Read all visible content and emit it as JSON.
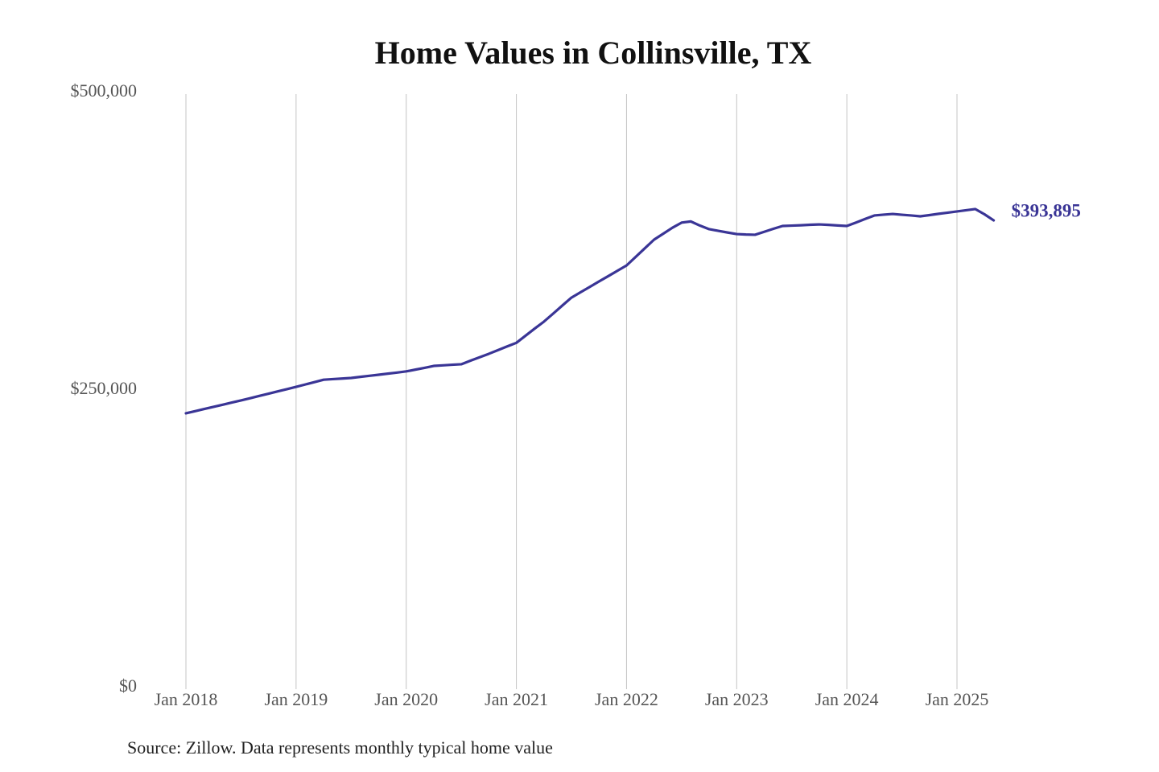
{
  "chart_data": {
    "type": "line",
    "title": "Home Values in Collinsville, TX",
    "source": "Source: Zillow. Data represents monthly typical home value",
    "x": [
      "2018-01",
      "2018-02",
      "2018-03",
      "2018-04",
      "2018-05",
      "2018-06",
      "2018-07",
      "2018-08",
      "2018-09",
      "2018-10",
      "2018-11",
      "2018-12",
      "2019-01",
      "2019-02",
      "2019-03",
      "2019-04",
      "2019-05",
      "2019-06",
      "2019-07",
      "2019-08",
      "2019-09",
      "2019-10",
      "2019-11",
      "2019-12",
      "2020-01",
      "2020-02",
      "2020-03",
      "2020-04",
      "2020-05",
      "2020-06",
      "2020-07",
      "2020-08",
      "2020-09",
      "2020-10",
      "2020-11",
      "2020-12",
      "2021-01",
      "2021-02",
      "2021-03",
      "2021-04",
      "2021-05",
      "2021-06",
      "2021-07",
      "2021-08",
      "2021-09",
      "2021-10",
      "2021-11",
      "2021-12",
      "2022-01",
      "2022-02",
      "2022-03",
      "2022-04",
      "2022-05",
      "2022-06",
      "2022-07",
      "2022-08",
      "2022-09",
      "2022-10",
      "2022-11",
      "2022-12",
      "2023-01",
      "2023-02",
      "2023-03",
      "2023-04",
      "2023-05",
      "2023-06",
      "2023-07",
      "2023-08",
      "2023-09",
      "2023-10",
      "2023-11",
      "2023-12",
      "2024-01",
      "2024-02",
      "2024-03",
      "2024-04",
      "2024-05",
      "2024-06",
      "2024-07",
      "2024-08",
      "2024-09",
      "2024-10",
      "2024-11",
      "2024-12",
      "2025-01",
      "2025-02",
      "2025-03",
      "2025-04",
      "2025-05"
    ],
    "series": [
      {
        "name": "Typical home value",
        "color": "#3a3596",
        "values": [
          231800,
          233600,
          235400,
          237200,
          239000,
          240800,
          242600,
          244500,
          246400,
          248300,
          250200,
          252100,
          254000,
          256000,
          258000,
          260000,
          260500,
          261000,
          261500,
          262400,
          263300,
          264200,
          265100,
          266000,
          267000,
          268500,
          270000,
          271600,
          272100,
          272600,
          273000,
          276000,
          278900,
          281800,
          284900,
          288000,
          291000,
          297000,
          303000,
          308800,
          315500,
          322300,
          329000,
          333500,
          338000,
          342600,
          347000,
          351500,
          356000,
          363200,
          370500,
          377700,
          382700,
          387700,
          392000,
          393000,
          389500,
          386500,
          385100,
          383700,
          382400,
          382000,
          381800,
          384300,
          386800,
          389200,
          389500,
          389800,
          390200,
          390500,
          390100,
          389600,
          389200,
          392100,
          395100,
          398000,
          398700,
          399300,
          398600,
          398000,
          397300,
          398300,
          399400,
          400400,
          401400,
          402400,
          403400,
          399000,
          393895
        ],
        "value_labels": [
          null,
          null,
          null,
          null,
          null,
          null,
          null,
          null,
          null,
          null,
          null,
          null,
          null,
          null,
          null,
          null,
          null,
          null,
          null,
          null,
          null,
          null,
          null,
          null,
          null,
          null,
          null,
          null,
          null,
          null,
          null,
          null,
          null,
          null,
          null,
          null,
          null,
          null,
          null,
          null,
          null,
          null,
          null,
          null,
          null,
          null,
          null,
          null,
          null,
          null,
          null,
          null,
          null,
          null,
          null,
          null,
          null,
          null,
          null,
          null,
          null,
          null,
          null,
          null,
          null,
          null,
          null,
          null,
          null,
          null,
          null,
          null,
          null,
          null,
          null,
          null,
          null,
          null,
          null,
          null,
          null,
          null,
          null,
          null,
          null,
          null,
          null,
          null,
          "$393,895"
        ]
      }
    ],
    "ylim": [
      0,
      500000
    ],
    "yticks": [
      {
        "value": 0,
        "label": "$0"
      },
      {
        "value": 250000,
        "label": "$250,000"
      },
      {
        "value": 500000,
        "label": "$500,000"
      }
    ],
    "xticks": [
      {
        "value": "2018-01",
        "label": "Jan 2018"
      },
      {
        "value": "2019-01",
        "label": "Jan 2019"
      },
      {
        "value": "2020-01",
        "label": "Jan 2020"
      },
      {
        "value": "2021-01",
        "label": "Jan 2021"
      },
      {
        "value": "2022-01",
        "label": "Jan 2022"
      },
      {
        "value": "2023-01",
        "label": "Jan 2023"
      },
      {
        "value": "2024-01",
        "label": "Jan 2024"
      },
      {
        "value": "2025-01",
        "label": "Jan 2025"
      }
    ],
    "grid": "x"
  }
}
